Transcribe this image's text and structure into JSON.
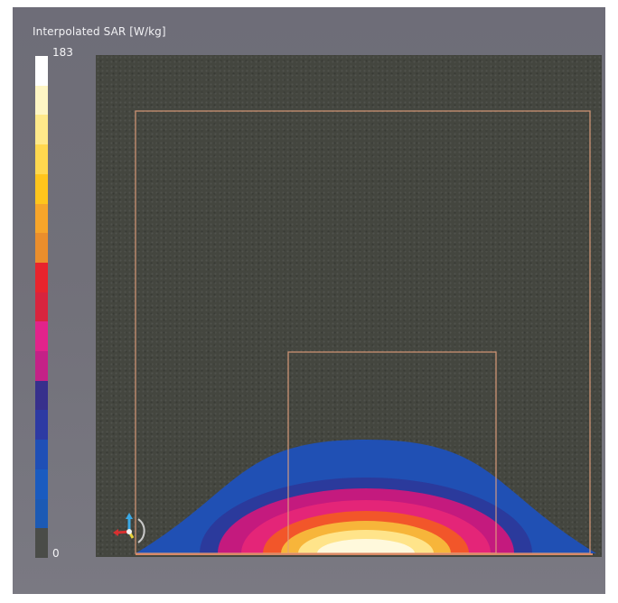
{
  "legend": {
    "title": "Interpolated SAR [W/kg]",
    "max_label": "183",
    "min_label": "0",
    "colors_top_to_bottom": [
      "#ffffff",
      "#fff6c4",
      "#ffe98a",
      "#ffd84f",
      "#ffc51c",
      "#f6a52a",
      "#ea8e2c",
      "#e8242d",
      "#d8243e",
      "#e2238b",
      "#c42187",
      "#37308c",
      "#2d3aa3",
      "#1f4fb6",
      "#1a5bbf",
      "#1c5ab4",
      "#4a4c48"
    ]
  },
  "field": {
    "contour_colors_outer_to_inner": [
      "#2050b4",
      "#2b3a9c",
      "#c41a7e",
      "#e42578",
      "#f2562a",
      "#f7b53a",
      "#ffe48a",
      "#fff9dc"
    ]
  },
  "colors": {
    "background": "#6f6e78",
    "plot_background": "#44463f",
    "outline": "#e3a07c"
  },
  "icons": {
    "axes": "axes-orientation-icon"
  }
}
